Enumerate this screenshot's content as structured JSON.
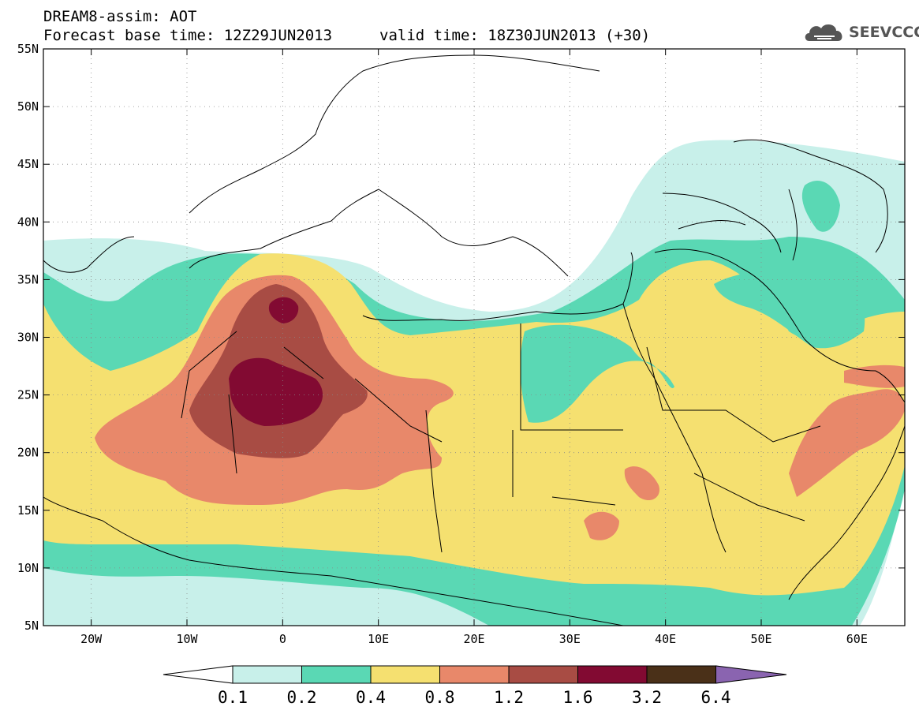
{
  "header": {
    "model_title": "DREAM8-assim: AOT",
    "base_time": "Forecast base time: 12Z29JUN2013",
    "valid_time": "valid time: 18Z30JUN2013 (+30)"
  },
  "logo": {
    "text": "SEEVCCC",
    "icon": "cloud-logo-icon"
  },
  "map": {
    "lat_labels": [
      "55N",
      "50N",
      "45N",
      "40N",
      "35N",
      "30N",
      "25N",
      "20N",
      "15N",
      "10N",
      "5N"
    ],
    "lon_labels": [
      "20W",
      "10W",
      "0",
      "10E",
      "20E",
      "30E",
      "40E",
      "50E",
      "60E"
    ],
    "extent": {
      "lon_min": -25,
      "lon_max": 65,
      "lat_min": 5,
      "lat_max": 55
    },
    "field": "Aerosol Optical Thickness"
  },
  "colorbar": {
    "labels": [
      "0.1",
      "0.2",
      "0.4",
      "0.8",
      "1.2",
      "1.6",
      "3.2",
      "6.4"
    ],
    "colors": [
      "#ffffff",
      "#c8f0ea",
      "#5ad8b4",
      "#f5e070",
      "#e8886a",
      "#a84c44",
      "#820a32",
      "#4a3018",
      "#8a64b0"
    ]
  },
  "colors": {
    "c1": "#c8f0ea",
    "c2": "#5ad8b4",
    "c3": "#f5e070",
    "c4": "#e8886a",
    "c5": "#a84c44",
    "c6": "#820a32"
  }
}
